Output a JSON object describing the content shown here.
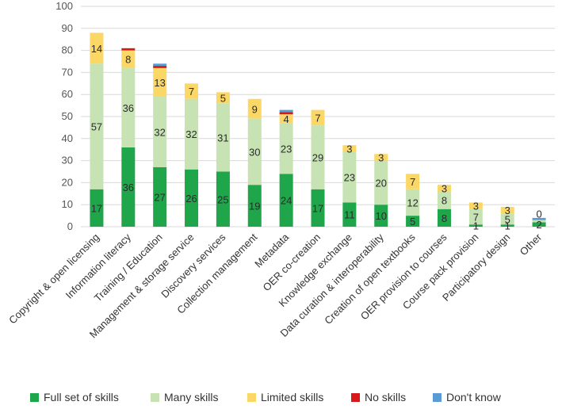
{
  "chart_data": {
    "type": "bar",
    "stacked": true,
    "ylim": [
      0,
      100
    ],
    "yticks": [
      0,
      10,
      20,
      30,
      40,
      50,
      60,
      70,
      80,
      90,
      100
    ],
    "grid": true,
    "legend_position": "bottom",
    "categories": [
      "Copyright & open licensing",
      "Information literacy",
      "Training / Education",
      "Management & storage service",
      "Discovery services",
      "Collection management",
      "Metadata",
      "OER co-creation",
      "Knowledge exchange",
      "Data curation & interoperability",
      "Creation of open textbooks",
      "OER provision to courses",
      "Course pack provision",
      "Participatory design",
      "Other"
    ],
    "series": [
      {
        "name": "Full set of skills",
        "color": "#1fa64a",
        "values": [
          17,
          36,
          27,
          26,
          25,
          19,
          24,
          17,
          11,
          10,
          5,
          8,
          1,
          1,
          2
        ]
      },
      {
        "name": "Many skills",
        "color": "#c7e3b4",
        "values": [
          57,
          36,
          32,
          32,
          31,
          30,
          23,
          29,
          23,
          20,
          12,
          8,
          7,
          5,
          1
        ]
      },
      {
        "name": "Limited skills",
        "color": "#fbd766",
        "values": [
          14,
          8,
          13,
          7,
          5,
          9,
          4,
          7,
          3,
          3,
          7,
          3,
          3,
          3,
          0
        ]
      },
      {
        "name": "No skills",
        "color": "#d7191c",
        "values": [
          0,
          1,
          1,
          0,
          0,
          0,
          1,
          0,
          0,
          0,
          0,
          0,
          0,
          0,
          0
        ]
      },
      {
        "name": "Don't know",
        "color": "#5b9bd5",
        "values": [
          0,
          0,
          1,
          0,
          0,
          0,
          1,
          0,
          0,
          0,
          0,
          0,
          0,
          0,
          1
        ]
      }
    ],
    "data_labels": {
      "Full set of skills": [
        "17",
        "36",
        "27",
        "26",
        "25",
        "19",
        "24",
        "17",
        "11",
        "10",
        "5",
        "8",
        "1",
        "1",
        "2"
      ],
      "Many skills": [
        "57",
        "36",
        "32",
        "32",
        "31",
        "30",
        "23",
        "29",
        "23",
        "20",
        "12",
        "8",
        "7",
        "5",
        ""
      ],
      "Limited skills": [
        "14",
        "8",
        "13",
        "7",
        "5",
        "9",
        "4",
        "7",
        "3",
        "3",
        "7",
        "3",
        "3",
        "3",
        "0"
      ]
    }
  }
}
